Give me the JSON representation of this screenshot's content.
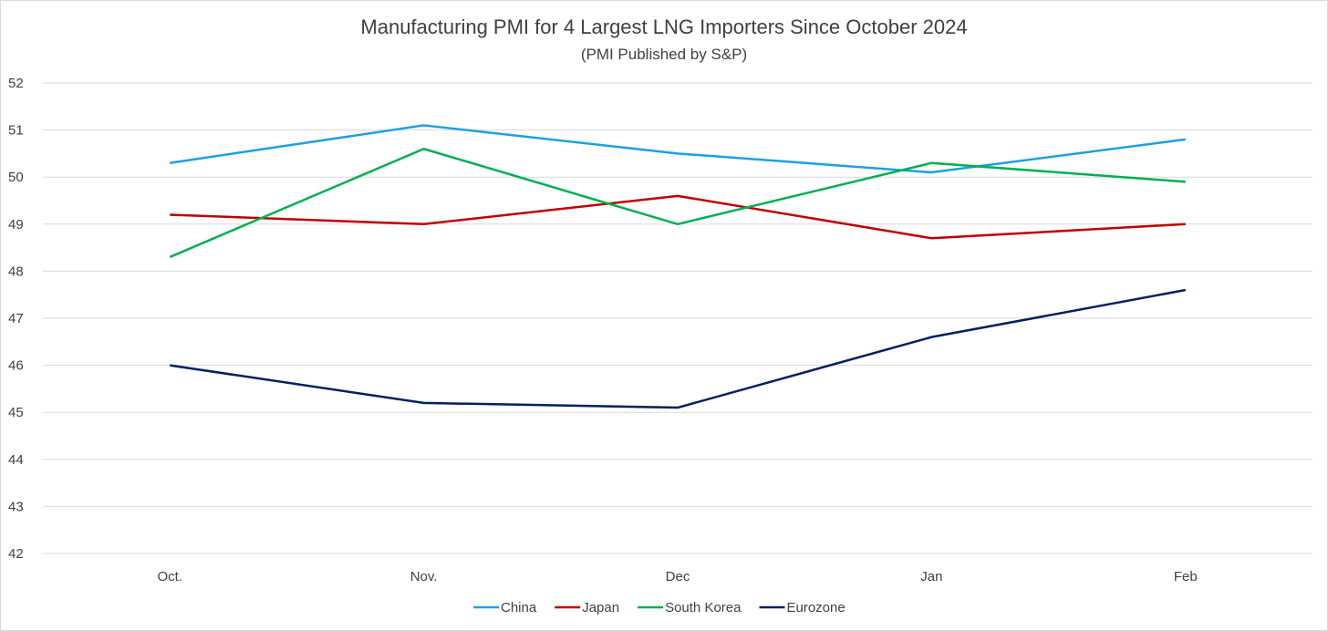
{
  "chart_data": {
    "type": "line",
    "title": "Manufacturing PMI for 4 Largest LNG Importers Since October 2024",
    "subtitle": "(PMI Published by S&P)",
    "xlabel": "",
    "ylabel": "",
    "categories": [
      "Oct.",
      "Nov.",
      "Dec",
      "Jan",
      "Feb"
    ],
    "ylim": [
      42,
      52
    ],
    "yticks": [
      42,
      43,
      44,
      45,
      46,
      47,
      48,
      49,
      50,
      51,
      52
    ],
    "grid": true,
    "legend_position": "bottom",
    "series": [
      {
        "name": "China",
        "color": "#1ba1e2",
        "values": [
          50.3,
          51.1,
          50.5,
          50.1,
          50.8
        ]
      },
      {
        "name": "Japan",
        "color": "#c00000",
        "values": [
          49.2,
          49.0,
          49.6,
          48.7,
          49.0
        ]
      },
      {
        "name": "South Korea",
        "color": "#00b050",
        "values": [
          48.3,
          50.6,
          49.0,
          50.3,
          49.9
        ]
      },
      {
        "name": "Eurozone",
        "color": "#002060",
        "values": [
          46.0,
          45.2,
          45.1,
          46.6,
          47.6
        ]
      }
    ]
  }
}
